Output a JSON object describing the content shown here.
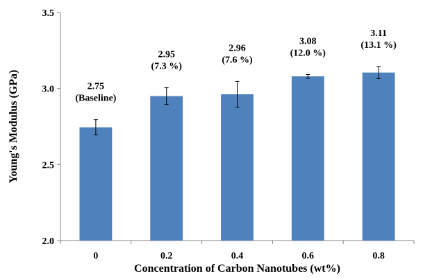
{
  "chart_data": {
    "type": "bar",
    "title": "",
    "xlabel": "Concentration of Carbon Nanotubes (wt%)",
    "ylabel": "Young's Modulus (GPa)",
    "categories": [
      "0",
      "0.2",
      "0.4",
      "0.6",
      "0.8"
    ],
    "values": [
      2.745,
      2.95,
      2.962,
      3.08,
      3.105
    ],
    "error": [
      0.05,
      0.055,
      0.085,
      0.012,
      0.04
    ],
    "label_values": [
      "2.75",
      "2.95",
      "2.96",
      "3.08",
      "3.11"
    ],
    "label_notes": [
      "(Baseline)",
      "(7.3 %)",
      "(7.6 %)",
      "(12.0 %)",
      "(13.1 %)"
    ],
    "yticks": [
      "2.0",
      "2.5",
      "3.0",
      "3.5"
    ],
    "ylim": [
      2.0,
      3.5
    ],
    "bar_color": "#4f81bd",
    "grid": false,
    "legend": "none"
  }
}
